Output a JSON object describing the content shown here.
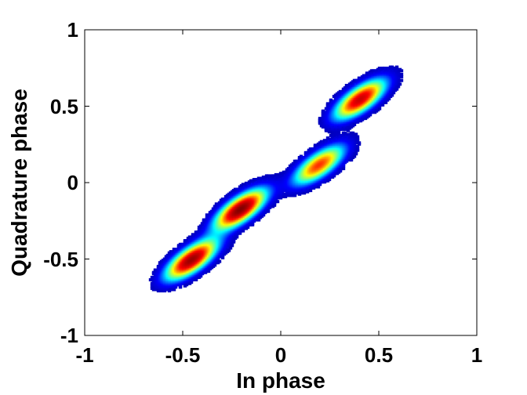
{
  "chart_data": {
    "type": "scatter",
    "subtype": "density-scatter",
    "title": "",
    "xlabel": "In phase",
    "ylabel": "Quadrature phase",
    "xlim": [
      -1,
      1
    ],
    "ylim": [
      -1,
      1
    ],
    "x_ticks": [
      -1,
      -0.5,
      0,
      0.5,
      1
    ],
    "y_ticks": [
      -1,
      -0.5,
      0,
      0.5,
      1
    ],
    "x_tick_labels": [
      "-1",
      "-0.5",
      "0",
      "0.5",
      "1"
    ],
    "y_tick_labels": [
      "-1",
      "-0.5",
      "0",
      "0.5",
      "1"
    ],
    "grid": false,
    "legend": "none",
    "colormap": [
      "#00008f",
      "#0000ff",
      "#00ffff",
      "#ffff00",
      "#ff0000",
      "#800000"
    ],
    "clusters": [
      {
        "x": -0.45,
        "y": -0.5,
        "peak_density": 0.95
      },
      {
        "x": -0.2,
        "y": -0.17,
        "peak_density": 1.0
      },
      {
        "x": 0.2,
        "y": 0.12,
        "peak_density": 0.7
      },
      {
        "x": 0.41,
        "y": 0.55,
        "peak_density": 0.85
      }
    ]
  }
}
